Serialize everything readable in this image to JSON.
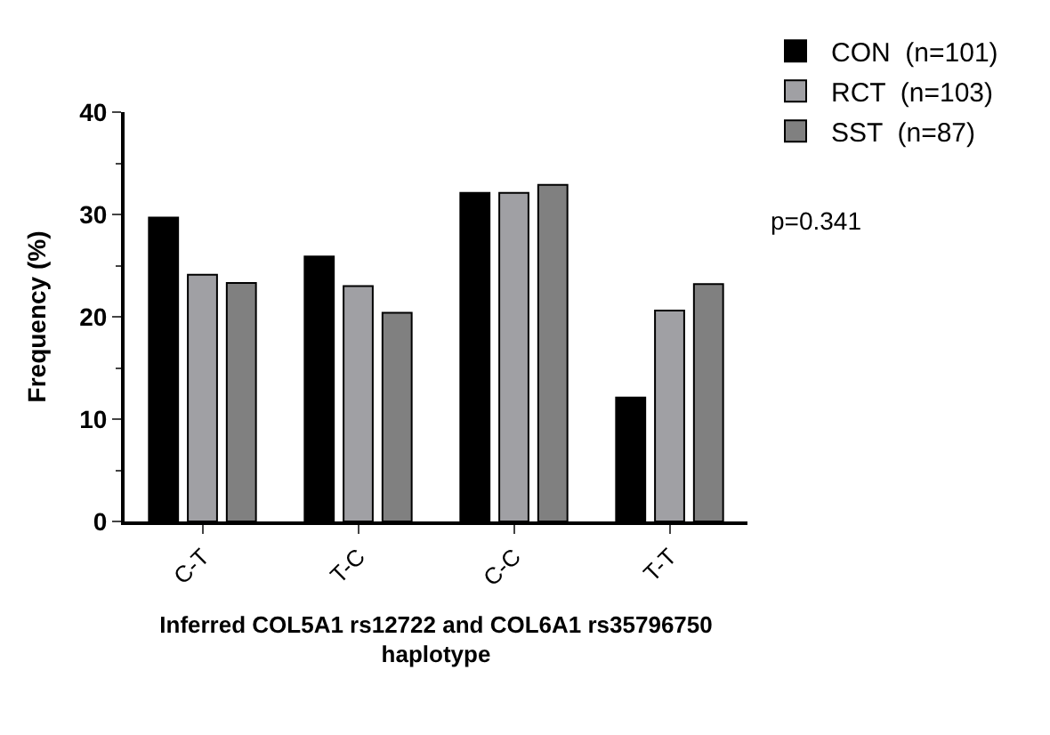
{
  "chart_data": {
    "type": "bar",
    "xlabel": "Inferred COL5A1 rs12722 and COL6A1 rs35796750 haplotype",
    "ylabel": "Frequency (%)",
    "categories": [
      "C-T",
      "T-C",
      "C-C",
      "T-T"
    ],
    "series": [
      {
        "name": "CON  (n=101)",
        "color": "#000000",
        "values": [
          29.7,
          25.9,
          32.1,
          12.1
        ]
      },
      {
        "name": "RCT  (n=103)",
        "color": "#a0a0a4",
        "values": [
          24.1,
          23.0,
          32.1,
          20.6
        ]
      },
      {
        "name": "SST  (n=87)",
        "color": "#808080",
        "values": [
          23.3,
          20.4,
          32.9,
          23.2
        ]
      }
    ],
    "ylim": [
      0,
      40
    ],
    "yticks": [
      0,
      10,
      20,
      30,
      40
    ],
    "legend": "top right",
    "annotations": [
      "p=0.341"
    ]
  }
}
